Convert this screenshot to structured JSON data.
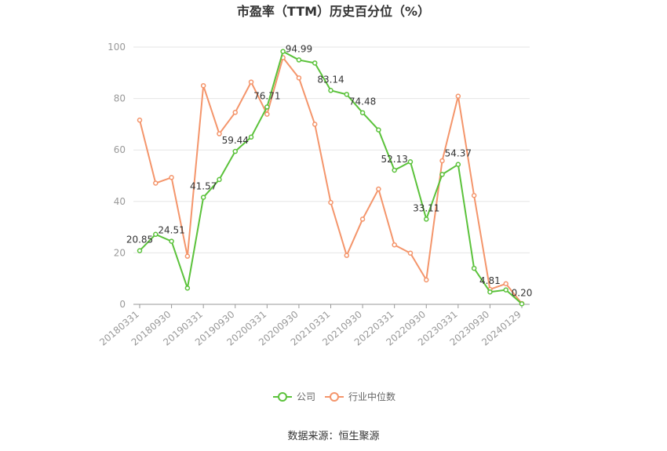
{
  "chart_data": {
    "type": "line",
    "title": "市盈率（TTM）历史百分位（%）",
    "source_label": "数据来源：恒生聚源",
    "ylim": [
      0,
      100
    ],
    "y_ticks": [
      0,
      20,
      40,
      60,
      80,
      100
    ],
    "x_tick_labels": [
      "20180331",
      "20180930",
      "20190331",
      "20190930",
      "20200331",
      "20200930",
      "20210331",
      "20210930",
      "20220331",
      "20220930",
      "20230331",
      "20230930",
      "20240129"
    ],
    "grid": true,
    "legend_position": "bottom-center",
    "series": [
      {
        "name": "公司",
        "color": "#5bc23b",
        "values": [
          20.85,
          27.2,
          24.51,
          6.3,
          41.57,
          48.5,
          59.44,
          65.0,
          76.71,
          98.3,
          94.99,
          93.8,
          83.14,
          81.6,
          74.48,
          67.8,
          52.13,
          55.4,
          33.11,
          50.5,
          54.37,
          14.0,
          4.81,
          5.6,
          0.2
        ]
      },
      {
        "name": "行业中位数",
        "color": "#f4956b",
        "values": [
          71.6,
          47.1,
          49.3,
          18.7,
          85.0,
          66.3,
          74.6,
          86.4,
          73.9,
          95.9,
          88.0,
          70.0,
          39.6,
          19.0,
          33.1,
          44.8,
          23.1,
          19.9,
          9.5,
          55.8,
          80.9,
          42.3,
          5.8,
          8.0,
          0.3
        ]
      }
    ],
    "data_labels": [
      {
        "index": 0,
        "text": "20.85"
      },
      {
        "index": 2,
        "text": "24.51"
      },
      {
        "index": 4,
        "text": "41.57"
      },
      {
        "index": 6,
        "text": "59.44"
      },
      {
        "index": 8,
        "text": "76.71"
      },
      {
        "index": 10,
        "text": "94.99"
      },
      {
        "index": 12,
        "text": "83.14"
      },
      {
        "index": 14,
        "text": "74.48"
      },
      {
        "index": 16,
        "text": "52.13"
      },
      {
        "index": 18,
        "text": "33.11"
      },
      {
        "index": 20,
        "text": "54.37"
      },
      {
        "index": 22,
        "text": "4.81"
      },
      {
        "index": 24,
        "text": "0.20"
      }
    ]
  }
}
